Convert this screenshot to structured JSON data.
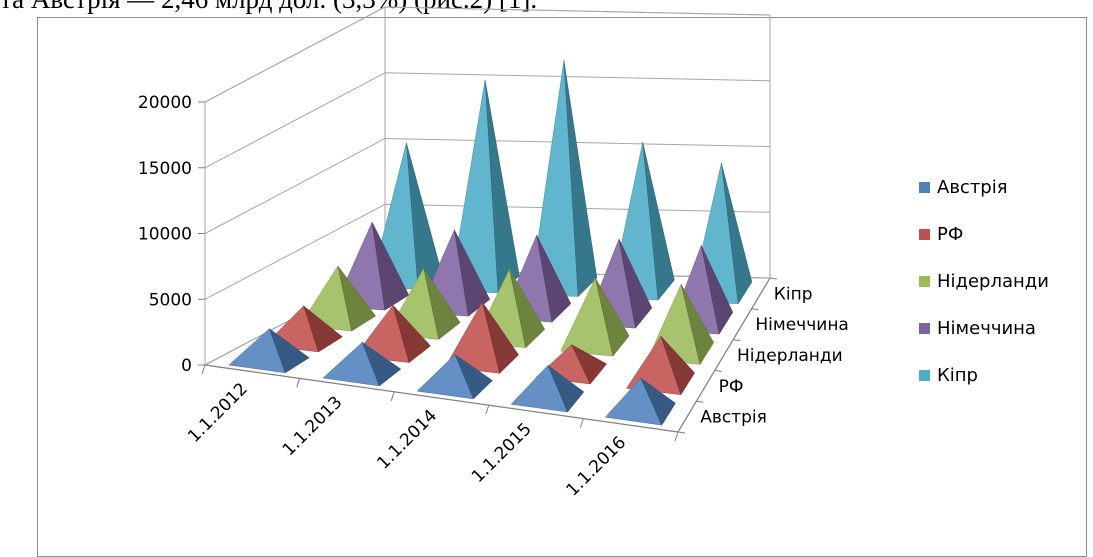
{
  "header_text": "та Австрія — 2,46 млрд дол. (3,3%) (рис.2) [1].",
  "chart_data": {
    "type": "bar",
    "subtype": "3d-pyramid",
    "title": "",
    "xlabel": "",
    "ylabel": "",
    "categories": [
      "1.1.2012",
      "1.1.2013",
      "1.1.2014",
      "1.1.2015",
      "1.1.2016"
    ],
    "yticks": [
      0,
      5000,
      10000,
      15000,
      20000
    ],
    "ylim": [
      0,
      20000
    ],
    "grid": true,
    "legend_position": "right",
    "series": [
      {
        "name": "Австрія",
        "color": "#4f81bd",
        "values": [
          2500,
          2400,
          2400,
          2500,
          2460
        ]
      },
      {
        "name": "РФ",
        "color": "#c0504d",
        "values": [
          2700,
          3500,
          4500,
          2000,
          3400
        ]
      },
      {
        "name": "Нідерланди",
        "color": "#9bbb59",
        "values": [
          4200,
          4600,
          5100,
          5000,
          5100
        ]
      },
      {
        "name": "Німеччина",
        "color": "#8064a2",
        "values": [
          6000,
          5800,
          5800,
          5900,
          5800
        ]
      },
      {
        "name": "Кіпр",
        "color": "#4bacc6",
        "values": [
          10500,
          15500,
          17200,
          11200,
          9800
        ]
      }
    ]
  }
}
